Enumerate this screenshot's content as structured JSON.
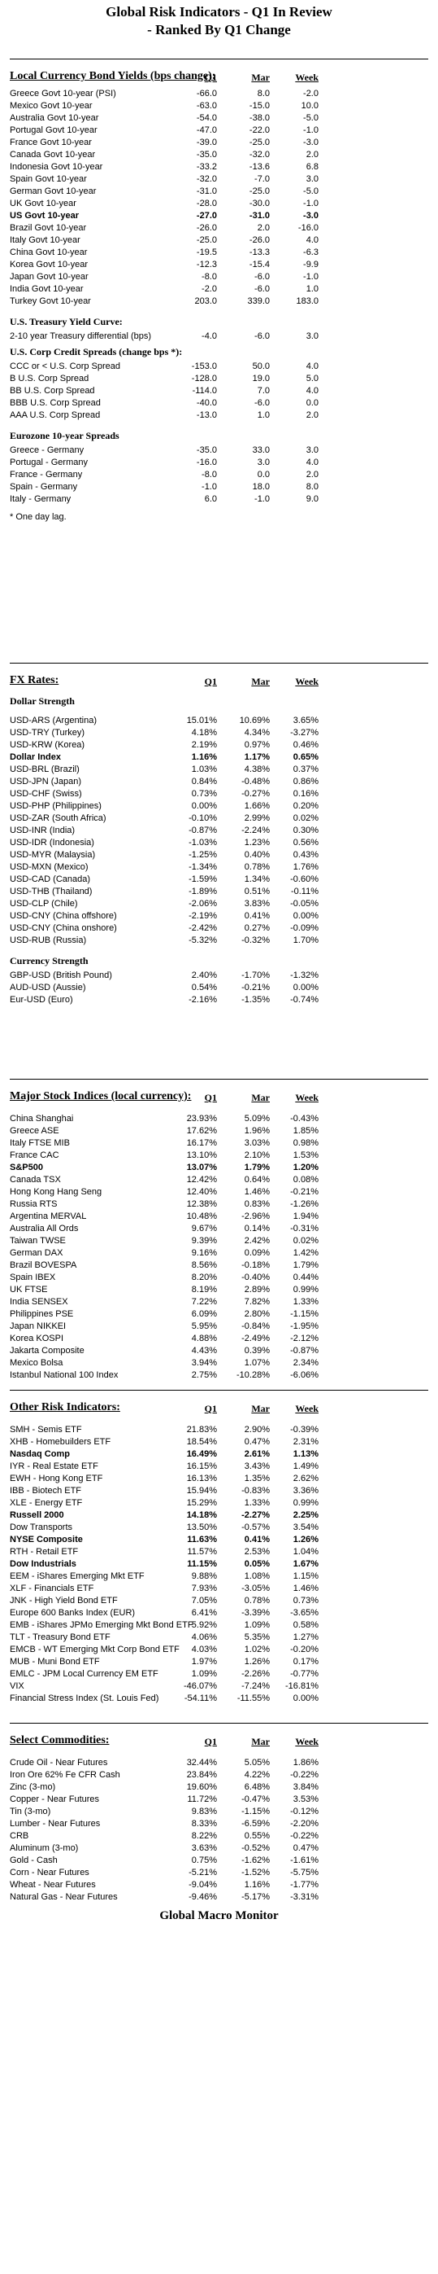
{
  "title_line1": "Global Risk Indicators - Q1 In Review",
  "title_line2": "- Ranked By Q1 Change",
  "footer": "Global Macro Monitor",
  "columns": {
    "c1": "Q1",
    "c2": "Mar",
    "c3": "Week"
  },
  "bonds": {
    "title": "Local Currency Bond Yields (bps change):",
    "rows": [
      {
        "label": "Greece Govt 10-year (PSI)",
        "q1": "-66.0",
        "mar": "8.0",
        "week": "-2.0"
      },
      {
        "label": "Mexico Govt 10-year",
        "q1": "-63.0",
        "mar": "-15.0",
        "week": "10.0"
      },
      {
        "label": "Australia Govt 10-year",
        "q1": "-54.0",
        "mar": "-38.0",
        "week": "-5.0"
      },
      {
        "label": "Portugal Govt 10-year",
        "q1": "-47.0",
        "mar": "-22.0",
        "week": "-1.0"
      },
      {
        "label": "France Govt 10-year",
        "q1": "-39.0",
        "mar": "-25.0",
        "week": "-3.0"
      },
      {
        "label": "Canada Govt 10-year",
        "q1": "-35.0",
        "mar": "-32.0",
        "week": "2.0"
      },
      {
        "label": "Indonesia Govt 10-year",
        "q1": "-33.2",
        "mar": "-13.6",
        "week": "6.8"
      },
      {
        "label": "Spain Govt 10-year",
        "q1": "-32.0",
        "mar": "-7.0",
        "week": "3.0"
      },
      {
        "label": "German Govt 10-year",
        "q1": "-31.0",
        "mar": "-25.0",
        "week": "-5.0"
      },
      {
        "label": "UK Govt 10-year",
        "q1": "-28.0",
        "mar": "-30.0",
        "week": "-1.0"
      },
      {
        "label": "US Govt 10-year",
        "q1": "-27.0",
        "mar": "-31.0",
        "week": "-3.0",
        "bold": true
      },
      {
        "label": "Brazil Govt 10-year",
        "q1": "-26.0",
        "mar": "2.0",
        "week": "-16.0"
      },
      {
        "label": "Italy Govt 10-year",
        "q1": "-25.0",
        "mar": "-26.0",
        "week": "4.0"
      },
      {
        "label": "China Govt 10-year",
        "q1": "-19.5",
        "mar": "-13.3",
        "week": "-6.3"
      },
      {
        "label": "Korea Govt 10-year",
        "q1": "-12.3",
        "mar": "-15.4",
        "week": "-9.9"
      },
      {
        "label": "Japan Govt 10-year",
        "q1": "-8.0",
        "mar": "-6.0",
        "week": "-1.0"
      },
      {
        "label": "India Govt 10-year",
        "q1": "-2.0",
        "mar": "-6.0",
        "week": "1.0"
      },
      {
        "label": "Turkey Govt 10-year",
        "q1": "203.0",
        "mar": "339.0",
        "week": "183.0"
      }
    ],
    "curve_title": "U.S. Treasury Yield Curve:",
    "curve_rows": [
      {
        "label": "2-10 year Treasury differential (bps)",
        "q1": "-4.0",
        "mar": "-6.0",
        "week": "3.0"
      }
    ],
    "credit_title": "U.S. Corp Credit Spreads (change bps *):",
    "credit_rows": [
      {
        "label": "CCC or < U.S. Corp Spread",
        "q1": "-153.0",
        "mar": "50.0",
        "week": "4.0"
      },
      {
        "label": "B U.S. Corp Spread",
        "q1": "-128.0",
        "mar": "19.0",
        "week": "5.0"
      },
      {
        "label": "BB U.S. Corp Spread",
        "q1": "-114.0",
        "mar": "7.0",
        "week": "4.0"
      },
      {
        "label": "BBB U.S. Corp Spread",
        "q1": "-40.0",
        "mar": "-6.0",
        "week": "0.0"
      },
      {
        "label": "AAA U.S. Corp Spread",
        "q1": "-13.0",
        "mar": "1.0",
        "week": "2.0"
      }
    ],
    "euro_title": "Eurozone 10-year Spreads",
    "euro_rows": [
      {
        "label": "Greece - Germany",
        "q1": "-35.0",
        "mar": "33.0",
        "week": "3.0"
      },
      {
        "label": "Portugal - Germany",
        "q1": "-16.0",
        "mar": "3.0",
        "week": "4.0"
      },
      {
        "label": "France - Germany",
        "q1": "-8.0",
        "mar": "0.0",
        "week": "2.0"
      },
      {
        "label": "Spain - Germany",
        "q1": "-1.0",
        "mar": "18.0",
        "week": "8.0"
      },
      {
        "label": "Italy - Germany",
        "q1": "6.0",
        "mar": "-1.0",
        "week": "9.0"
      }
    ],
    "note": "* One day lag."
  },
  "fx": {
    "title": "FX Rates:",
    "dollar_title": "Dollar Strength",
    "dollar_rows": [
      {
        "label": "USD-ARS (Argentina)",
        "q1": "15.01%",
        "mar": "10.69%",
        "week": "3.65%"
      },
      {
        "label": "USD-TRY (Turkey)",
        "q1": "4.18%",
        "mar": "4.34%",
        "week": "-3.27%"
      },
      {
        "label": "USD-KRW (Korea)",
        "q1": "2.19%",
        "mar": "0.97%",
        "week": "0.46%"
      },
      {
        "label": "Dollar Index",
        "q1": "1.16%",
        "mar": "1.17%",
        "week": "0.65%",
        "bold": true
      },
      {
        "label": "USD-BRL (Brazil)",
        "q1": "1.03%",
        "mar": "4.38%",
        "week": "0.37%"
      },
      {
        "label": "USD-JPN (Japan)",
        "q1": "0.84%",
        "mar": "-0.48%",
        "week": "0.86%"
      },
      {
        "label": "USD-CHF (Swiss)",
        "q1": "0.73%",
        "mar": "-0.27%",
        "week": "0.16%"
      },
      {
        "label": "USD-PHP (Philippines)",
        "q1": "0.00%",
        "mar": "1.66%",
        "week": "0.20%"
      },
      {
        "label": "USD-ZAR (South Africa)",
        "q1": "-0.10%",
        "mar": "2.99%",
        "week": "0.02%"
      },
      {
        "label": "USD-INR (India)",
        "q1": "-0.87%",
        "mar": "-2.24%",
        "week": "0.30%"
      },
      {
        "label": "USD-IDR (Indonesia)",
        "q1": "-1.03%",
        "mar": "1.23%",
        "week": "0.56%"
      },
      {
        "label": "USD-MYR (Malaysia)",
        "q1": "-1.25%",
        "mar": "0.40%",
        "week": "0.43%"
      },
      {
        "label": "USD-MXN  (Mexico)",
        "q1": "-1.34%",
        "mar": "0.78%",
        "week": "1.76%"
      },
      {
        "label": "USD-CAD (Canada)",
        "q1": "-1.59%",
        "mar": "1.34%",
        "week": "-0.60%"
      },
      {
        "label": "USD-THB  (Thailand)",
        "q1": "-1.89%",
        "mar": "0.51%",
        "week": "-0.11%"
      },
      {
        "label": "USD-CLP (Chile)",
        "q1": "-2.06%",
        "mar": "3.83%",
        "week": "-0.05%"
      },
      {
        "label": "USD-CNY (China offshore)",
        "q1": "-2.19%",
        "mar": "0.41%",
        "week": "0.00%"
      },
      {
        "label": "USD-CNY (China onshore)",
        "q1": "-2.42%",
        "mar": "0.27%",
        "week": "-0.09%"
      },
      {
        "label": "USD-RUB (Russia)",
        "q1": "-5.32%",
        "mar": "-0.32%",
        "week": "1.70%"
      }
    ],
    "currency_title": "Currency Strength",
    "currency_rows": [
      {
        "label": "GBP-USD (British Pound)",
        "q1": "2.40%",
        "mar": "-1.70%",
        "week": "-1.32%"
      },
      {
        "label": "AUD-USD (Aussie)",
        "q1": "0.54%",
        "mar": "-0.21%",
        "week": "0.00%"
      },
      {
        "label": "Eur-USD (Euro)",
        "q1": "-2.16%",
        "mar": "-1.35%",
        "week": "-0.74%"
      }
    ]
  },
  "stocks": {
    "title": "Major Stock Indices (local currency):",
    "rows": [
      {
        "label": "China Shanghai",
        "q1": "23.93%",
        "mar": "5.09%",
        "week": "-0.43%"
      },
      {
        "label": "Greece ASE",
        "q1": "17.62%",
        "mar": "1.96%",
        "week": "1.85%"
      },
      {
        "label": "Italy FTSE MIB",
        "q1": "16.17%",
        "mar": "3.03%",
        "week": "0.98%"
      },
      {
        "label": "France CAC",
        "q1": "13.10%",
        "mar": "2.10%",
        "week": "1.53%"
      },
      {
        "label": "S&P500",
        "q1": "13.07%",
        "mar": "1.79%",
        "week": "1.20%",
        "bold": true
      },
      {
        "label": "Canada TSX",
        "q1": "12.42%",
        "mar": "0.64%",
        "week": "0.08%"
      },
      {
        "label": "Hong Kong Hang Seng",
        "q1": "12.40%",
        "mar": "1.46%",
        "week": "-0.21%"
      },
      {
        "label": "Russia RTS",
        "q1": "12.38%",
        "mar": "0.83%",
        "week": "-1.26%"
      },
      {
        "label": "Argentina MERVAL",
        "q1": "10.48%",
        "mar": "-2.96%",
        "week": "1.94%"
      },
      {
        "label": "Australia All Ords",
        "q1": "9.67%",
        "mar": "0.14%",
        "week": "-0.31%"
      },
      {
        "label": "Taiwan  TWSE",
        "q1": "9.39%",
        "mar": "2.42%",
        "week": "0.02%"
      },
      {
        "label": "German DAX",
        "q1": "9.16%",
        "mar": "0.09%",
        "week": "1.42%"
      },
      {
        "label": "Brazil BOVESPA",
        "q1": "8.56%",
        "mar": "-0.18%",
        "week": "1.79%"
      },
      {
        "label": "Spain IBEX",
        "q1": "8.20%",
        "mar": "-0.40%",
        "week": "0.44%"
      },
      {
        "label": "UK FTSE",
        "q1": "8.19%",
        "mar": "2.89%",
        "week": "0.99%"
      },
      {
        "label": "India SENSEX",
        "q1": "7.22%",
        "mar": "7.82%",
        "week": "1.33%"
      },
      {
        "label": "Philippines PSE",
        "q1": "6.09%",
        "mar": "2.80%",
        "week": "-1.15%"
      },
      {
        "label": "Japan NIKKEI",
        "q1": "5.95%",
        "mar": "-0.84%",
        "week": "-1.95%"
      },
      {
        "label": "Korea KOSPI",
        "q1": "4.88%",
        "mar": "-2.49%",
        "week": "-2.12%"
      },
      {
        "label": "Jakarta Composite",
        "q1": "4.43%",
        "mar": "0.39%",
        "week": "-0.87%"
      },
      {
        "label": "Mexico Bolsa",
        "q1": "3.94%",
        "mar": "1.07%",
        "week": "2.34%"
      },
      {
        "label": "Istanbul National 100 Index",
        "q1": "2.75%",
        "mar": "-10.28%",
        "week": "-6.06%"
      }
    ]
  },
  "risk": {
    "title": "Other Risk Indicators:",
    "rows": [
      {
        "label": "SMH - Semis ETF",
        "q1": "21.83%",
        "mar": "2.90%",
        "week": "-0.39%"
      },
      {
        "label": "XHB - Homebuilders ETF",
        "q1": "18.54%",
        "mar": "0.47%",
        "week": "2.31%"
      },
      {
        "label": "Nasdaq Comp",
        "q1": "16.49%",
        "mar": "2.61%",
        "week": "1.13%",
        "bold": true
      },
      {
        "label": "IYR - Real Estate ETF",
        "q1": "16.15%",
        "mar": "3.43%",
        "week": "1.49%"
      },
      {
        "label": "EWH - Hong Kong ETF",
        "q1": "16.13%",
        "mar": "1.35%",
        "week": "2.62%"
      },
      {
        "label": "IBB - Biotech ETF",
        "q1": "15.94%",
        "mar": "-0.83%",
        "week": "3.36%"
      },
      {
        "label": "XLE - Energy ETF",
        "q1": "15.29%",
        "mar": "1.33%",
        "week": "0.99%"
      },
      {
        "label": "Russell 2000",
        "q1": "14.18%",
        "mar": "-2.27%",
        "week": "2.25%",
        "bold": true
      },
      {
        "label": "Dow Transports",
        "q1": "13.50%",
        "mar": "-0.57%",
        "week": "3.54%"
      },
      {
        "label": "NYSE Composite",
        "q1": "11.63%",
        "mar": "0.41%",
        "week": "1.26%",
        "bold": true
      },
      {
        "label": "RTH - Retail ETF",
        "q1": "11.57%",
        "mar": "2.53%",
        "week": "1.04%"
      },
      {
        "label": "Dow Industrials",
        "q1": "11.15%",
        "mar": "0.05%",
        "week": "1.67%",
        "bold": true
      },
      {
        "label": "EEM - iShares Emerging Mkt ETF",
        "q1": "9.88%",
        "mar": "1.08%",
        "week": "1.15%"
      },
      {
        "label": "XLF - Financials ETF",
        "q1": "7.93%",
        "mar": "-3.05%",
        "week": "1.46%"
      },
      {
        "label": "JNK - High Yield Bond ETF",
        "q1": "7.05%",
        "mar": "0.78%",
        "week": "0.73%"
      },
      {
        "label": "Europe 600 Banks Index (EUR)",
        "q1": "6.41%",
        "mar": "-3.39%",
        "week": "-3.65%"
      },
      {
        "label": "EMB - iShares JPMo Emerging Mkt Bond ETF",
        "q1": "5.92%",
        "mar": "1.09%",
        "week": "0.58%"
      },
      {
        "label": "TLT - Treasury Bond ETF",
        "q1": "4.06%",
        "mar": "5.35%",
        "week": "1.27%"
      },
      {
        "label": "EMCB - WT Emerging Mkt Corp Bond ETF",
        "q1": "4.03%",
        "mar": "1.02%",
        "week": "-0.20%"
      },
      {
        "label": "MUB - Muni Bond ETF",
        "q1": "1.97%",
        "mar": "1.26%",
        "week": "0.17%"
      },
      {
        "label": "EMLC - JPM Local Currency EM ETF",
        "q1": "1.09%",
        "mar": "-2.26%",
        "week": "-0.77%"
      },
      {
        "label": "VIX",
        "q1": "-46.07%",
        "mar": "-7.24%",
        "week": "-16.81%"
      },
      {
        "label": "Financial Stress Index (St. Louis Fed)",
        "q1": "-54.11%",
        "mar": "-11.55%",
        "week": "0.00%"
      }
    ]
  },
  "commodities": {
    "title": "Select Commodities:",
    "rows": [
      {
        "label": "Crude Oil - Near Futures",
        "q1": "32.44%",
        "mar": "5.05%",
        "week": "1.86%"
      },
      {
        "label": "Iron Ore 62% Fe CFR Cash",
        "q1": "23.84%",
        "mar": "4.22%",
        "week": "-0.22%"
      },
      {
        "label": "Zinc (3-mo)",
        "q1": "19.60%",
        "mar": "6.48%",
        "week": "3.84%"
      },
      {
        "label": "Copper - Near Futures",
        "q1": "11.72%",
        "mar": "-0.47%",
        "week": "3.53%"
      },
      {
        "label": "Tin (3-mo)",
        "q1": "9.83%",
        "mar": "-1.15%",
        "week": "-0.12%"
      },
      {
        "label": "Lumber - Near Futures",
        "q1": "8.33%",
        "mar": "-6.59%",
        "week": "-2.20%"
      },
      {
        "label": "CRB",
        "q1": "8.22%",
        "mar": "0.55%",
        "week": "-0.22%"
      },
      {
        "label": "Aluminum (3-mo)",
        "q1": "3.63%",
        "mar": "-0.52%",
        "week": "0.47%"
      },
      {
        "label": "Gold - Cash",
        "q1": "0.75%",
        "mar": "-1.62%",
        "week": "-1.61%"
      },
      {
        "label": "Corn - Near Futures",
        "q1": "-5.21%",
        "mar": "-1.52%",
        "week": "-5.75%"
      },
      {
        "label": "Wheat - Near Futures",
        "q1": "-9.04%",
        "mar": "1.16%",
        "week": "-1.77%"
      },
      {
        "label": "Natural Gas - Near Futures",
        "q1": "-9.46%",
        "mar": "-5.17%",
        "week": "-3.31%"
      }
    ]
  }
}
